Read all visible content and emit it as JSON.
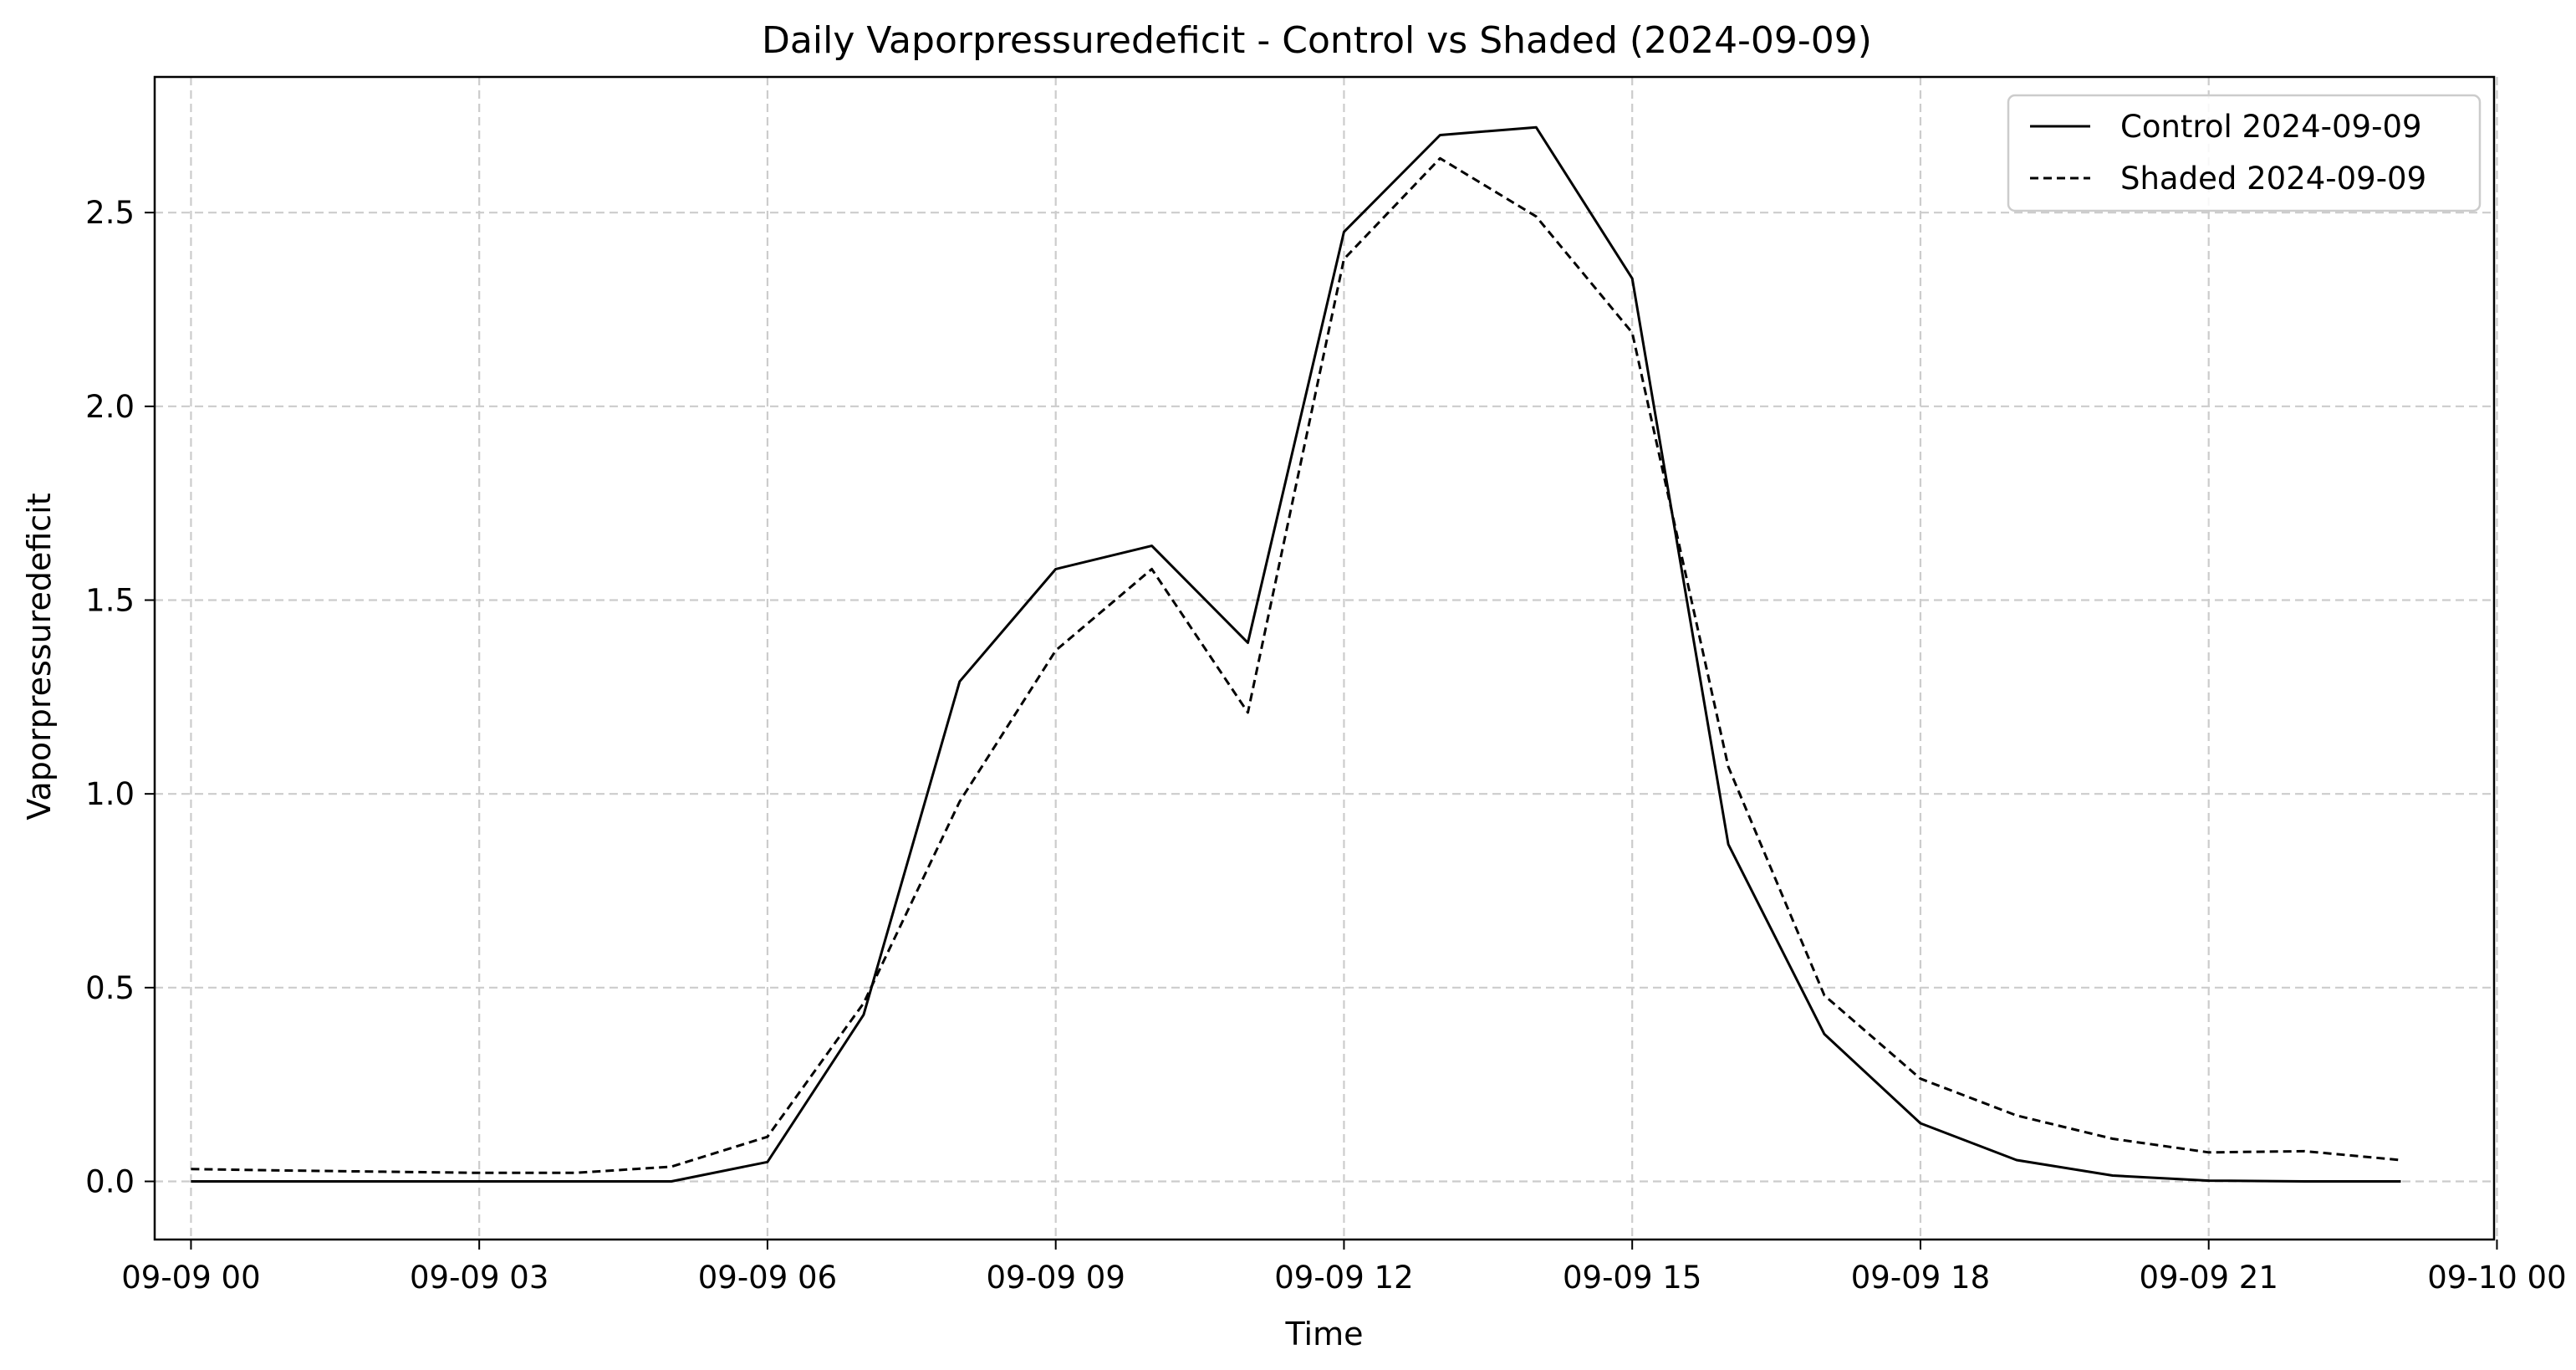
{
  "chart_data": {
    "type": "line",
    "title": "Daily Vaporpressuredeficit - Control vs Shaded (2024-09-09)",
    "xlabel": "Time",
    "ylabel": "Vaporpressuredeficit",
    "x_unit": "hours since 2024-09-09 00:00",
    "xlim": [
      "09-09 00",
      "09-10 00"
    ],
    "ylim": [
      -0.15,
      2.85
    ],
    "grid": true,
    "legend_position": "top-right",
    "x_ticks": [
      {
        "label": "09-09 00",
        "hour": 0
      },
      {
        "label": "09-09 03",
        "hour": 3
      },
      {
        "label": "09-09 06",
        "hour": 6
      },
      {
        "label": "09-09 09",
        "hour": 9
      },
      {
        "label": "09-09 12",
        "hour": 12
      },
      {
        "label": "09-09 15",
        "hour": 15
      },
      {
        "label": "09-09 18",
        "hour": 18
      },
      {
        "label": "09-09 21",
        "hour": 21
      },
      {
        "label": "09-10 00",
        "hour": 24
      }
    ],
    "y_ticks": [
      {
        "label": "0.0",
        "value": 0.0
      },
      {
        "label": "0.5",
        "value": 0.5
      },
      {
        "label": "1.0",
        "value": 1.0
      },
      {
        "label": "1.5",
        "value": 1.5
      },
      {
        "label": "2.0",
        "value": 2.0
      },
      {
        "label": "2.5",
        "value": 2.5
      }
    ],
    "x": [
      "00:00",
      "01:00",
      "02:00",
      "03:00",
      "04:00",
      "05:00",
      "06:00",
      "07:00",
      "08:00",
      "09:00",
      "10:00",
      "11:00",
      "12:00",
      "13:00",
      "14:00",
      "15:00",
      "16:00",
      "17:00",
      "18:00",
      "19:00",
      "20:00",
      "21:00",
      "22:00",
      "23:00"
    ],
    "series": [
      {
        "name": "Control 2024-09-09",
        "style": "solid",
        "color": "#000000",
        "values": [
          0.0,
          0.0,
          0.0,
          0.0,
          0.0,
          0.0,
          0.05,
          0.43,
          1.29,
          1.58,
          1.64,
          1.39,
          2.45,
          2.7,
          2.72,
          2.33,
          0.87,
          0.38,
          0.15,
          0.055,
          0.015,
          0.002,
          0.0,
          0.0
        ]
      },
      {
        "name": "Shaded 2024-09-09",
        "style": "dashed",
        "color": "#000000",
        "values": [
          0.032,
          0.028,
          0.025,
          0.022,
          0.022,
          0.038,
          0.115,
          0.46,
          0.98,
          1.37,
          1.58,
          1.21,
          2.38,
          2.64,
          2.49,
          2.19,
          1.07,
          0.48,
          0.265,
          0.17,
          0.11,
          0.075,
          0.078,
          0.055
        ]
      }
    ]
  }
}
